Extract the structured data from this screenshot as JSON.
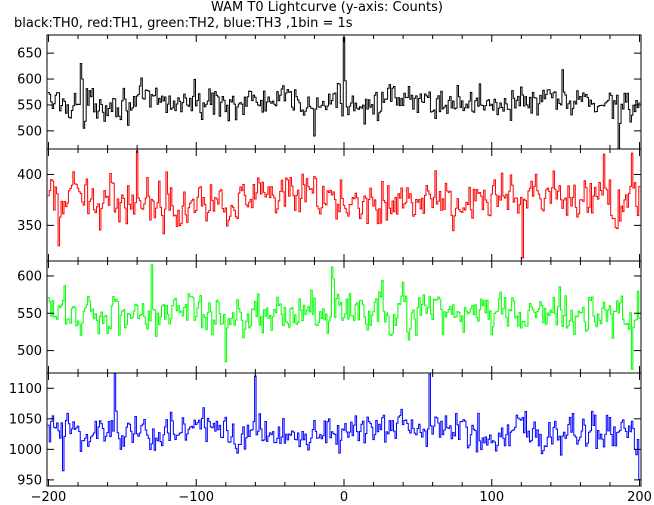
{
  "chart_data": {
    "type": "line",
    "title": "WAM T0 Lightcurve (y-axis: Counts)",
    "subtitle": "black:TH0, red:TH1, green:TH2, blue:TH3 ,1bin = 1s",
    "xlabel": "",
    "ylabel": "",
    "xlim": [
      -201,
      201
    ],
    "x_ticks": [
      -200,
      -100,
      0,
      100,
      200
    ],
    "x_tick_labels": [
      "-200",
      "-100",
      "0",
      "100",
      "200"
    ],
    "grid": false,
    "legend": "none",
    "series": [
      {
        "name": "TH0",
        "color": "#000000",
        "ylim": [
          465,
          685
        ],
        "y_ticks": [
          500,
          550,
          600,
          650
        ],
        "y_tick_labels": [
          "500",
          "550",
          "600",
          "650"
        ],
        "mean": 555,
        "amplitude": 30,
        "spikes": [
          [
            0,
            680
          ],
          [
            -178,
            630
          ],
          [
            -176,
            505
          ],
          [
            148,
            618
          ],
          [
            186,
            465
          ],
          [
            -20,
            490
          ]
        ]
      },
      {
        "name": "TH1",
        "color": "#ff0000",
        "ylim": [
          315,
          425
        ],
        "y_ticks": [
          350,
          400
        ],
        "y_tick_labels": [
          "350",
          "400"
        ],
        "mean": 375,
        "amplitude": 22,
        "spikes": [
          [
            -140,
            423
          ],
          [
            121,
            318
          ],
          [
            176,
            420
          ],
          [
            195,
            421
          ],
          [
            -193,
            330
          ]
        ]
      },
      {
        "name": "TH2",
        "color": "#00ff00",
        "ylim": [
          470,
          620
        ],
        "y_ticks": [
          500,
          550,
          600
        ],
        "y_tick_labels": [
          "500",
          "550",
          "600"
        ],
        "mean": 550,
        "amplitude": 28,
        "spikes": [
          [
            -130,
            615
          ],
          [
            -8,
            612
          ],
          [
            195,
            475
          ],
          [
            -80,
            485
          ]
        ]
      },
      {
        "name": "TH3",
        "color": "#0000ff",
        "ylim": [
          940,
          1125
        ],
        "y_ticks": [
          950,
          1000,
          1050,
          1100
        ],
        "y_tick_labels": [
          "950",
          "1000",
          "1050",
          "1100"
        ],
        "mean": 1030,
        "amplitude": 32,
        "spikes": [
          [
            -155,
            1125
          ],
          [
            58,
            1123
          ],
          [
            -60,
            1120
          ],
          [
            200,
            950
          ],
          [
            -190,
            965
          ]
        ]
      }
    ]
  }
}
